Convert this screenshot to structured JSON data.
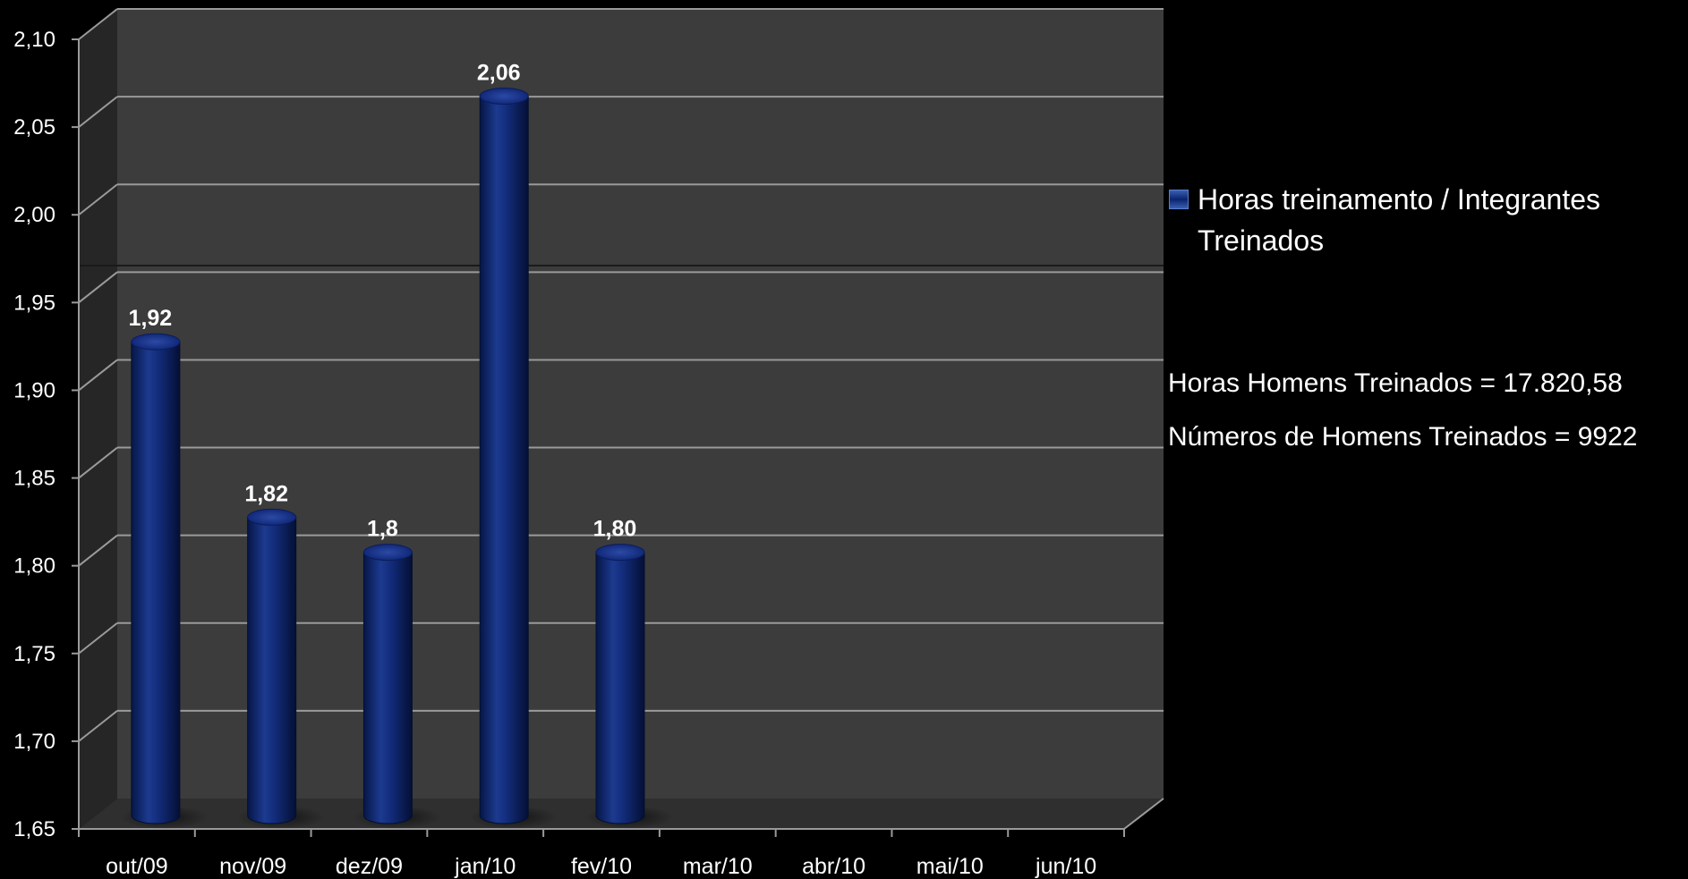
{
  "chart_data": {
    "type": "bar",
    "categories": [
      "out/09",
      "nov/09",
      "dez/09",
      "jan/10",
      "fev/10",
      "mar/10",
      "abr/10",
      "mai/10",
      "jun/10"
    ],
    "series": [
      {
        "name": "Horas treinamento / Integrantes Treinados",
        "values": [
          1.92,
          1.82,
          1.8,
          2.06,
          1.8,
          null,
          null,
          null,
          null
        ],
        "data_labels": [
          "1,92",
          "1,82",
          "1,8",
          "2,06",
          "1,80",
          "",
          "",
          "",
          ""
        ]
      }
    ],
    "y_ticks": [
      "1,65",
      "1,70",
      "1,75",
      "1,80",
      "1,85",
      "1,90",
      "1,95",
      "2,00",
      "2,05",
      "2,10"
    ],
    "ylim": [
      1.65,
      2.1
    ],
    "grid": true,
    "legend_position": "right",
    "bar_style": "3d-cylinder",
    "colors": {
      "bar": "#0b2470",
      "bar_highlight": "#3a5fb0",
      "back_wall": "#3c3c3c",
      "side_wall": "#2a2a2a",
      "floor": "#333333",
      "gridline": "#9a9a9a",
      "background": "#000000",
      "text": "#ffffff"
    }
  },
  "legend": {
    "label": "Horas treinamento / Integrantes Treinados"
  },
  "notes": {
    "horas_homens": "Horas Homens Treinados = 17.820,58",
    "numeros_homens": "Números de Homens Treinados = 9922"
  }
}
